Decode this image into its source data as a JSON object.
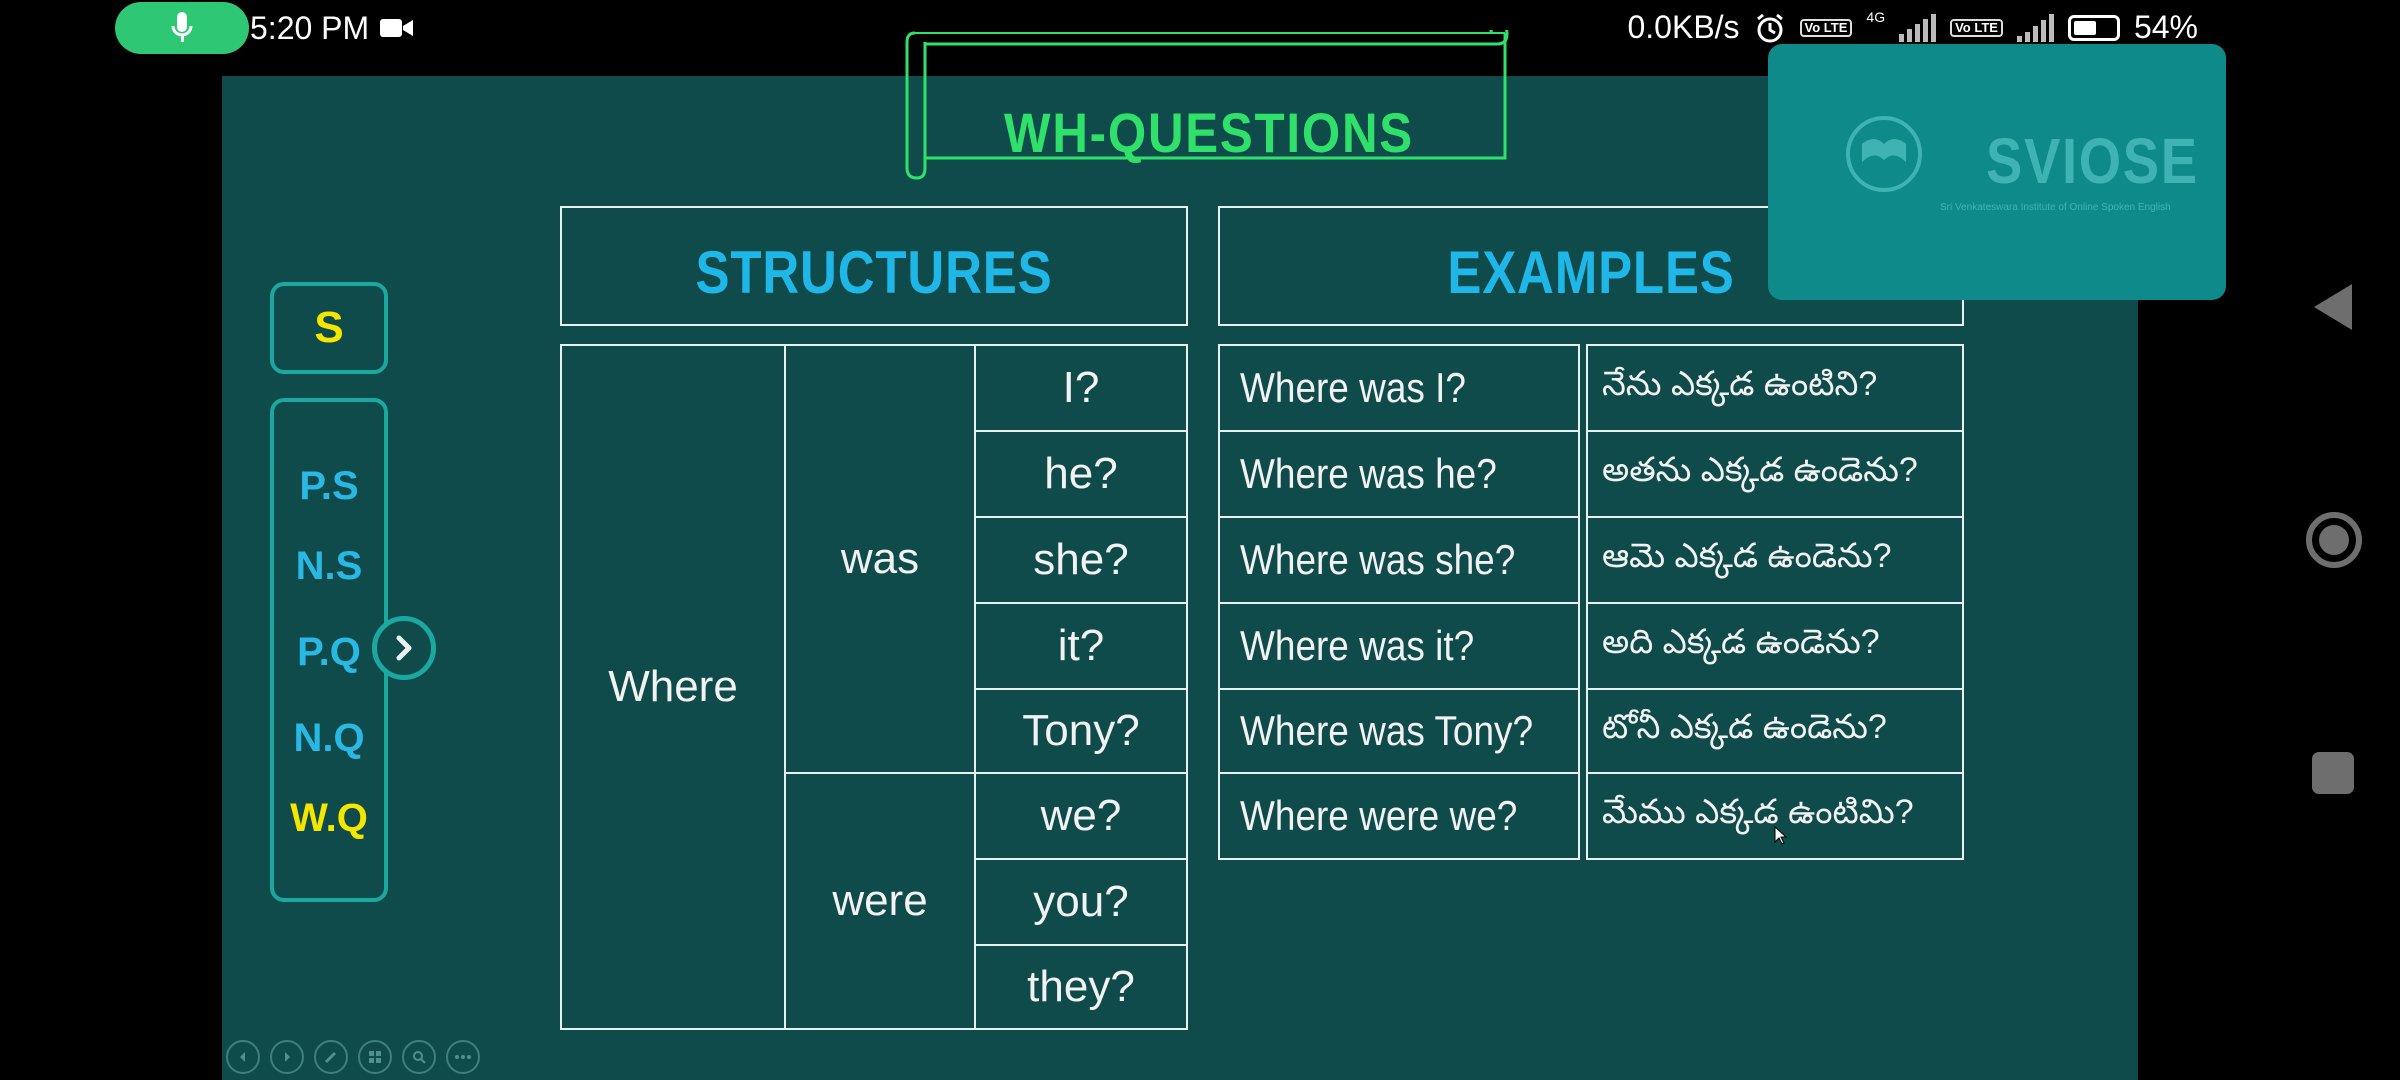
{
  "status_bar": {
    "time": "5:20 PM",
    "network_speed": "0.0KB/s",
    "network_type": "4G",
    "volte_label": "Vo LTE",
    "battery_level": 0.54,
    "battery_text": "54%"
  },
  "slide": {
    "title": "WH-QUESTIONS",
    "structures_header": "STRUCTURES",
    "examples_header": "EXAMPLES",
    "wh_word": "Where",
    "verbs": [
      {
        "label": "was",
        "subjects": [
          "I?",
          "he?",
          "she?",
          "it?",
          "Tony?"
        ]
      },
      {
        "label": "were",
        "subjects": [
          "we?",
          "you?",
          "they?"
        ]
      }
    ],
    "examples": [
      {
        "en": "Where was I?",
        "te": "నేను ఎక్కడ ఉంటిని?"
      },
      {
        "en": "Where was he?",
        "te": "అతను ఎక్కడ ఉండెను?"
      },
      {
        "en": "Where was she?",
        "te": "ఆమె ఎక్కడ ఉండెను?"
      },
      {
        "en": "Where was it?",
        "te": "అది ఎక్కడ ఉండెను?"
      },
      {
        "en": "Where was Tony?",
        "te": "టోనీ ఎక్కడ ఉండెను?"
      },
      {
        "en": "Where were we?",
        "te": "మేము ఎక్కడ ఉంటిమి?"
      }
    ]
  },
  "side_nav": {
    "top_label": "S",
    "items": [
      "P.S",
      "N.S",
      "P.Q",
      "N.Q",
      "W.Q"
    ],
    "active_item": "W.Q"
  },
  "watermark": {
    "name": "SVIOSE",
    "tagline": "Sri Venkateswara Institute of Online Spoken English"
  },
  "colors": {
    "slide_bg": "#0f4b4b",
    "title_green": "#2fe06a",
    "header_blue": "#1fb7e8",
    "highlight_yellow": "#f5e600",
    "mic_green": "#2ec774"
  }
}
